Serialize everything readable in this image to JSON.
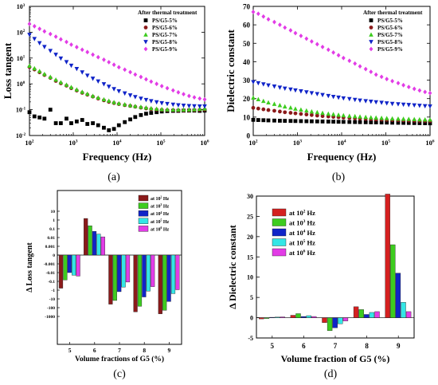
{
  "colors": {
    "black": "#000000",
    "brown": "#8B1A1A",
    "green": "#3DCC1F",
    "blue": "#1024C8",
    "cyan": "#33E6E6",
    "magenta": "#E23CE6",
    "red": "#D42020"
  },
  "chart_data": [
    {
      "type": "scatter",
      "panel_label": "(a)",
      "title": "After thermal treatment",
      "xlabel": "Frequency (Hz)",
      "ylabel": "Loss tangent",
      "xscale": "log",
      "yscale": "log",
      "xlim": [
        100,
        1000000
      ],
      "ylim": [
        0.01,
        1000
      ],
      "xticks": [
        "10",
        "10",
        "10",
        "10",
        "10"
      ],
      "xtick_exp": [
        "2",
        "3",
        "4",
        "5",
        "6"
      ],
      "yticks": [
        "10",
        "10",
        "10",
        "10",
        "10",
        "10"
      ],
      "ytick_exp": [
        "-2",
        "-1",
        "0",
        "1",
        "2",
        "3"
      ],
      "legend_position": "top-right",
      "x": [
        100,
        130,
        170,
        220,
        300,
        400,
        520,
        700,
        900,
        1200,
        1600,
        2100,
        2800,
        3700,
        5000,
        6500,
        8500,
        11000,
        15000,
        20000,
        26000,
        35000,
        46000,
        60000,
        80000,
        105000,
        140000,
        190000,
        250000,
        330000,
        440000,
        580000,
        770000,
        1000000
      ],
      "series": [
        {
          "name": "PS/G5-5%",
          "marker": "square",
          "color": "black",
          "values": [
            0.08,
            0.055,
            0.05,
            0.045,
            0.1,
            0.03,
            0.03,
            0.045,
            0.03,
            0.035,
            0.04,
            0.028,
            0.03,
            0.025,
            0.02,
            0.016,
            0.018,
            0.025,
            0.033,
            0.042,
            0.052,
            0.062,
            0.07,
            0.075,
            0.08,
            0.085,
            0.088,
            0.09,
            0.09,
            0.092,
            0.092,
            0.092,
            0.09,
            0.092
          ]
        },
        {
          "name": "PS/G5-6%",
          "marker": "circle",
          "color": "brown",
          "values": [
            4.5,
            3.6,
            2.8,
            2.2,
            1.7,
            1.3,
            1.05,
            0.85,
            0.68,
            0.55,
            0.45,
            0.38,
            0.32,
            0.27,
            0.23,
            0.2,
            0.18,
            0.165,
            0.15,
            0.14,
            0.13,
            0.12,
            0.112,
            0.105,
            0.1,
            0.098,
            0.096,
            0.095,
            0.094,
            0.094,
            0.095,
            0.096,
            0.098,
            0.1
          ]
        },
        {
          "name": "PS/G5-7%",
          "marker": "triangle-up",
          "color": "green",
          "values": [
            5.0,
            4.0,
            3.1,
            2.4,
            1.85,
            1.45,
            1.15,
            0.92,
            0.74,
            0.6,
            0.49,
            0.41,
            0.34,
            0.29,
            0.25,
            0.22,
            0.195,
            0.175,
            0.16,
            0.148,
            0.138,
            0.128,
            0.12,
            0.113,
            0.108,
            0.104,
            0.102,
            0.1,
            0.1,
            0.1,
            0.101,
            0.103,
            0.106,
            0.11
          ]
        },
        {
          "name": "PS/G5-8%",
          "marker": "triangle-down",
          "color": "blue",
          "values": [
            80,
            55,
            38,
            27,
            19,
            13.5,
            9.7,
            7.0,
            5.1,
            3.8,
            2.8,
            2.1,
            1.6,
            1.25,
            0.98,
            0.78,
            0.63,
            0.52,
            0.43,
            0.36,
            0.31,
            0.27,
            0.24,
            0.215,
            0.195,
            0.18,
            0.168,
            0.158,
            0.15,
            0.145,
            0.14,
            0.137,
            0.135,
            0.135
          ]
        },
        {
          "name": "PS/G5-9%",
          "marker": "diamond",
          "color": "magenta",
          "values": [
            210,
            170,
            135,
            108,
            85,
            67,
            53,
            42,
            33,
            26.5,
            21,
            17,
            13.5,
            10.8,
            8.6,
            6.9,
            5.5,
            4.4,
            3.55,
            2.85,
            2.3,
            1.85,
            1.5,
            1.22,
            1.0,
            0.82,
            0.68,
            0.56,
            0.47,
            0.4,
            0.34,
            0.3,
            0.27,
            0.25
          ]
        }
      ]
    },
    {
      "type": "scatter",
      "panel_label": "(b)",
      "title": "After thermal treatment",
      "xlabel": "Frequency (Hz)",
      "ylabel": "Dielectric constant",
      "xscale": "log",
      "xlim": [
        100,
        1000000
      ],
      "ylim": [
        0,
        70
      ],
      "xticks": [
        "10",
        "10",
        "10",
        "10",
        "10"
      ],
      "xtick_exp": [
        "2",
        "3",
        "4",
        "5",
        "6"
      ],
      "yticks": [
        "0",
        "10",
        "20",
        "30",
        "40",
        "50",
        "60",
        "70"
      ],
      "legend_position": "top-right",
      "x": [
        100,
        130,
        170,
        220,
        300,
        400,
        520,
        700,
        900,
        1200,
        1600,
        2100,
        2800,
        3700,
        5000,
        6500,
        8500,
        11000,
        15000,
        20000,
        26000,
        35000,
        46000,
        60000,
        80000,
        105000,
        140000,
        190000,
        250000,
        330000,
        440000,
        580000,
        770000,
        1000000
      ],
      "series": [
        {
          "name": "PS/G5-5%",
          "marker": "square",
          "color": "black",
          "values": [
            8.5,
            8.4,
            8.3,
            8.2,
            8.1,
            8.0,
            7.95,
            7.9,
            7.85,
            7.8,
            7.75,
            7.7,
            7.65,
            7.6,
            7.55,
            7.5,
            7.45,
            7.4,
            7.35,
            7.3,
            7.25,
            7.2,
            7.15,
            7.1,
            7.05,
            7.0,
            6.95,
            6.9,
            6.85,
            6.8,
            6.75,
            6.7,
            6.65,
            6.6
          ]
        },
        {
          "name": "PS/G5-6%",
          "marker": "circle",
          "color": "brown",
          "values": [
            15,
            14.6,
            14.2,
            13.8,
            13.4,
            13.0,
            12.6,
            12.3,
            12.0,
            11.7,
            11.4,
            11.1,
            10.8,
            10.5,
            10.3,
            10.1,
            9.9,
            9.7,
            9.5,
            9.3,
            9.15,
            9.0,
            8.85,
            8.7,
            8.6,
            8.5,
            8.4,
            8.3,
            8.2,
            8.1,
            8.0,
            7.95,
            7.9,
            7.85
          ]
        },
        {
          "name": "PS/G5-7%",
          "marker": "triangle-up",
          "color": "green",
          "values": [
            20.5,
            19.6,
            18.7,
            17.9,
            17.1,
            16.4,
            15.7,
            15.1,
            14.5,
            14.0,
            13.5,
            13.0,
            12.6,
            12.2,
            11.8,
            11.5,
            11.2,
            10.9,
            10.6,
            10.4,
            10.2,
            10.0,
            9.8,
            9.65,
            9.5,
            9.35,
            9.2,
            9.1,
            9.0,
            8.9,
            8.8,
            8.7,
            8.65,
            8.6
          ]
        },
        {
          "name": "PS/G5-8%",
          "marker": "triangle-down",
          "color": "blue",
          "values": [
            29,
            28.4,
            27.8,
            27.2,
            26.6,
            26.0,
            25.5,
            25.0,
            24.5,
            24.0,
            23.5,
            23.0,
            22.5,
            22.0,
            21.5,
            21.0,
            20.6,
            20.2,
            19.8,
            19.4,
            19.0,
            18.7,
            18.4,
            18.1,
            17.8,
            17.5,
            17.2,
            17.0,
            16.8,
            16.6,
            16.4,
            16.2,
            16.0,
            15.8
          ]
        },
        {
          "name": "PS/G5-9%",
          "marker": "diamond",
          "color": "magenta",
          "values": [
            67,
            66,
            64.5,
            63,
            61.5,
            60,
            58.5,
            57,
            55.5,
            54,
            52.5,
            51,
            49.5,
            48,
            46.5,
            45,
            43.5,
            42,
            40.5,
            39,
            37.5,
            36,
            34.5,
            33,
            31.8,
            30.6,
            29.5,
            28.4,
            27.3,
            26.3,
            25.3,
            24.4,
            23.6,
            23
          ]
        }
      ]
    },
    {
      "type": "bar",
      "panel_label": "(c)",
      "xlabel": "Volume fractions of G5 (%)",
      "ylabel": "Δ Loss tangent",
      "yscale": "symlog",
      "categories": [
        "5",
        "6",
        "7",
        "8",
        "9"
      ],
      "yticks": [
        "10",
        "1",
        "0.1",
        "0.01",
        "0.001",
        "0",
        "-0.001",
        "-0.01",
        "-0.1",
        "-1",
        "-10",
        "-100",
        "-1000"
      ],
      "legend_position": "top-right",
      "legend_sup": [
        "2",
        "3",
        "4",
        "5",
        "6"
      ],
      "series": [
        {
          "name": "at 10 Hz",
          "exp": "2",
          "color": "brown",
          "values": [
            -0.6,
            1.5,
            -40,
            -300,
            -500
          ]
        },
        {
          "name": "at 10 Hz",
          "exp": "3",
          "color": "green",
          "values": [
            -0.07,
            0.22,
            -15,
            -70,
            -200
          ]
        },
        {
          "name": "at 10 Hz",
          "exp": "4",
          "color": "blue",
          "values": [
            -0.01,
            0.05,
            -1.5,
            -6,
            -20
          ]
        },
        {
          "name": "at 10 Hz",
          "exp": "5",
          "color": "cyan",
          "values": [
            -0.02,
            0.025,
            -0.45,
            -1.3,
            -2.5
          ]
        },
        {
          "name": "at 10 Hz",
          "exp": "6",
          "color": "magenta",
          "values": [
            -0.025,
            0.012,
            -0.12,
            -0.4,
            -0.9
          ]
        }
      ]
    },
    {
      "type": "bar",
      "panel_label": "(d)",
      "xlabel": "Volume fraction of G5 (%)",
      "ylabel": "Δ Dielectric constant",
      "categories": [
        "5",
        "6",
        "7",
        "8",
        "9"
      ],
      "ylim": [
        -5,
        30
      ],
      "yticks": [
        "-5",
        "0",
        "5",
        "10",
        "15",
        "20",
        "25",
        "30"
      ],
      "legend_position": "top-left",
      "legend_sup": [
        "2",
        "3",
        "4",
        "5",
        "6"
      ],
      "series": [
        {
          "name": "at 10 Hz",
          "exp": "2",
          "color": "red",
          "values": [
            -0.3,
            0.6,
            -1.2,
            2.7,
            30.5
          ]
        },
        {
          "name": "at 10 Hz",
          "exp": "3",
          "color": "green",
          "values": [
            -0.2,
            1.0,
            -3.2,
            2.0,
            18.0
          ]
        },
        {
          "name": "at 10 Hz",
          "exp": "4",
          "color": "blue",
          "values": [
            0.1,
            0.3,
            -2.5,
            0.8,
            11.0
          ]
        },
        {
          "name": "at 10 Hz",
          "exp": "5",
          "color": "cyan",
          "values": [
            0.15,
            0.5,
            -1.5,
            1.3,
            3.8
          ]
        },
        {
          "name": "at 10 Hz",
          "exp": "6",
          "color": "magenta",
          "values": [
            0.2,
            0.3,
            -0.8,
            1.5,
            1.5
          ]
        }
      ]
    }
  ]
}
